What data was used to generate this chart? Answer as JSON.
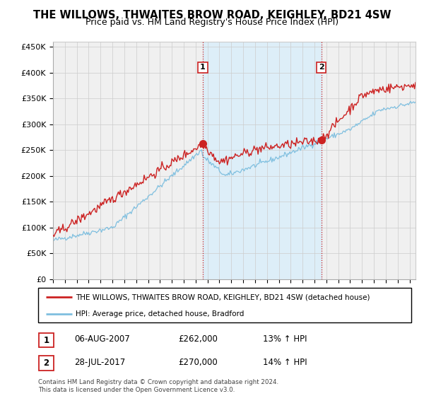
{
  "title": "THE WILLOWS, THWAITES BROW ROAD, KEIGHLEY, BD21 4SW",
  "subtitle": "Price paid vs. HM Land Registry's House Price Index (HPI)",
  "ylabel_ticks": [
    "£0",
    "£50K",
    "£100K",
    "£150K",
    "£200K",
    "£250K",
    "£300K",
    "£350K",
    "£400K",
    "£450K"
  ],
  "ylabel_values": [
    0,
    50000,
    100000,
    150000,
    200000,
    250000,
    300000,
    350000,
    400000,
    450000
  ],
  "ylim": [
    0,
    460000
  ],
  "xlim_start": 1995.0,
  "xlim_end": 2025.5,
  "sale1_x": 2007.6,
  "sale1_y": 262000,
  "sale2_x": 2017.58,
  "sale2_y": 270000,
  "legend_line1": "THE WILLOWS, THWAITES BROW ROAD, KEIGHLEY, BD21 4SW (detached house)",
  "legend_line2": "HPI: Average price, detached house, Bradford",
  "table_row1": [
    "1",
    "06-AUG-2007",
    "£262,000",
    "13% ↑ HPI"
  ],
  "table_row2": [
    "2",
    "28-JUL-2017",
    "£270,000",
    "14% ↑ HPI"
  ],
  "footer": "Contains HM Land Registry data © Crown copyright and database right 2024.\nThis data is licensed under the Open Government Licence v3.0.",
  "hpi_color": "#7fbfdf",
  "price_color": "#cc2222",
  "sale_dot_color": "#cc2222",
  "background_color": "#ffffff",
  "grid_color": "#cccccc",
  "vline_color": "#cc2222",
  "shade_color": "#ddeef8",
  "title_fontsize": 10.5,
  "subtitle_fontsize": 9,
  "tick_fontsize": 8
}
